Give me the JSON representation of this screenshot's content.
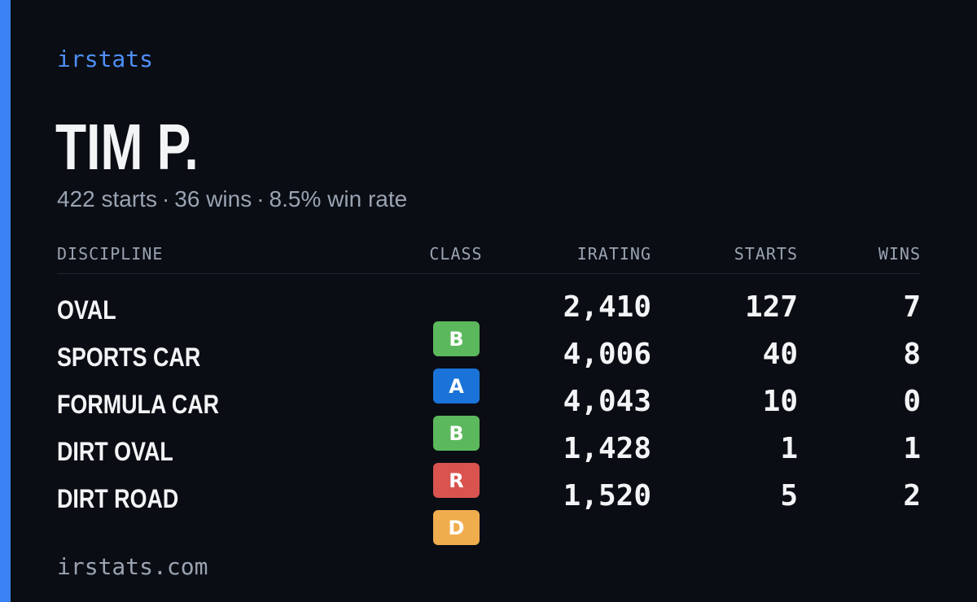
{
  "brand": "irstats",
  "player": {
    "name": "TIM P.",
    "starts_text": "422 starts",
    "wins_text": "36 wins",
    "winrate_text": "8.5% win rate",
    "separator": "·"
  },
  "table": {
    "headers": {
      "discipline": "DISCIPLINE",
      "class": "CLASS",
      "irating": "IRATING",
      "starts": "STARTS",
      "wins": "WINS"
    },
    "rows": [
      {
        "discipline": "OVAL",
        "class": "B",
        "class_color": "#5cb85c",
        "irating": "2,410",
        "starts": "127",
        "wins": "7"
      },
      {
        "discipline": "SPORTS CAR",
        "class": "A",
        "class_color": "#1a73d9",
        "irating": "4,006",
        "starts": "40",
        "wins": "8"
      },
      {
        "discipline": "FORMULA CAR",
        "class": "B",
        "class_color": "#5cb85c",
        "irating": "4,043",
        "starts": "10",
        "wins": "0"
      },
      {
        "discipline": "DIRT OVAL",
        "class": "R",
        "class_color": "#d9534f",
        "irating": "1,428",
        "starts": "1",
        "wins": "1"
      },
      {
        "discipline": "DIRT ROAD",
        "class": "D",
        "class_color": "#f0ad4e",
        "irating": "1,520",
        "starts": "5",
        "wins": "2"
      }
    ]
  },
  "footer": {
    "url": "irstats.com"
  },
  "colors": {
    "background": "#0a0d14",
    "accent": "#3b82f6",
    "brand_text": "#4f8ff7",
    "muted_text": "#9aa3b2",
    "primary_text": "#f3f4f6"
  }
}
